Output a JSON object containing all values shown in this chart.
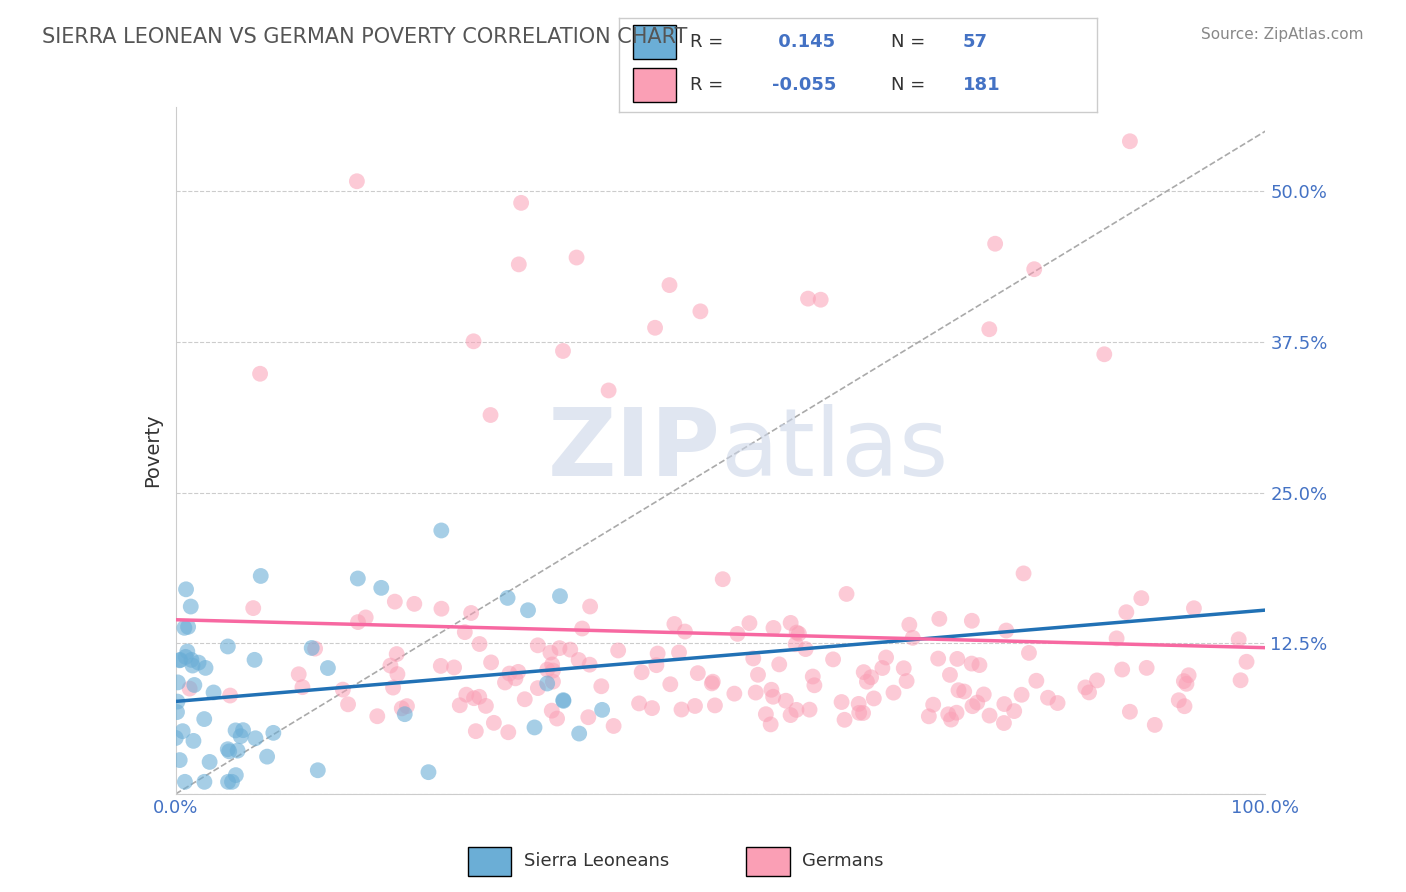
{
  "title": "SIERRA LEONEAN VS GERMAN POVERTY CORRELATION CHART",
  "source_text": "Source: ZipAtlas.com",
  "xlabel": "",
  "ylabel": "Poverty",
  "xlim": [
    0.0,
    1.0
  ],
  "ylim": [
    0.0,
    0.55
  ],
  "yticks": [
    0.0,
    0.125,
    0.25,
    0.375,
    0.5
  ],
  "ytick_labels": [
    "",
    "12.5%",
    "25.0%",
    "37.5%",
    "50.0%"
  ],
  "xticks": [
    0.0,
    0.25,
    0.5,
    0.75,
    1.0
  ],
  "xtick_labels": [
    "0.0%",
    "",
    "",
    "",
    "100.0%"
  ],
  "blue_color": "#6baed6",
  "pink_color": "#fa9fb5",
  "blue_line_color": "#2171b5",
  "pink_line_color": "#f768a1",
  "blue_R": 0.145,
  "blue_N": 57,
  "pink_R": -0.055,
  "pink_N": 181,
  "watermark_zip": "ZIP",
  "watermark_atlas": "atlas",
  "background_color": "#ffffff",
  "grid_color": "#cccccc",
  "title_color": "#555555",
  "tick_label_color": "#4472c4",
  "ylabel_color": "#333333"
}
